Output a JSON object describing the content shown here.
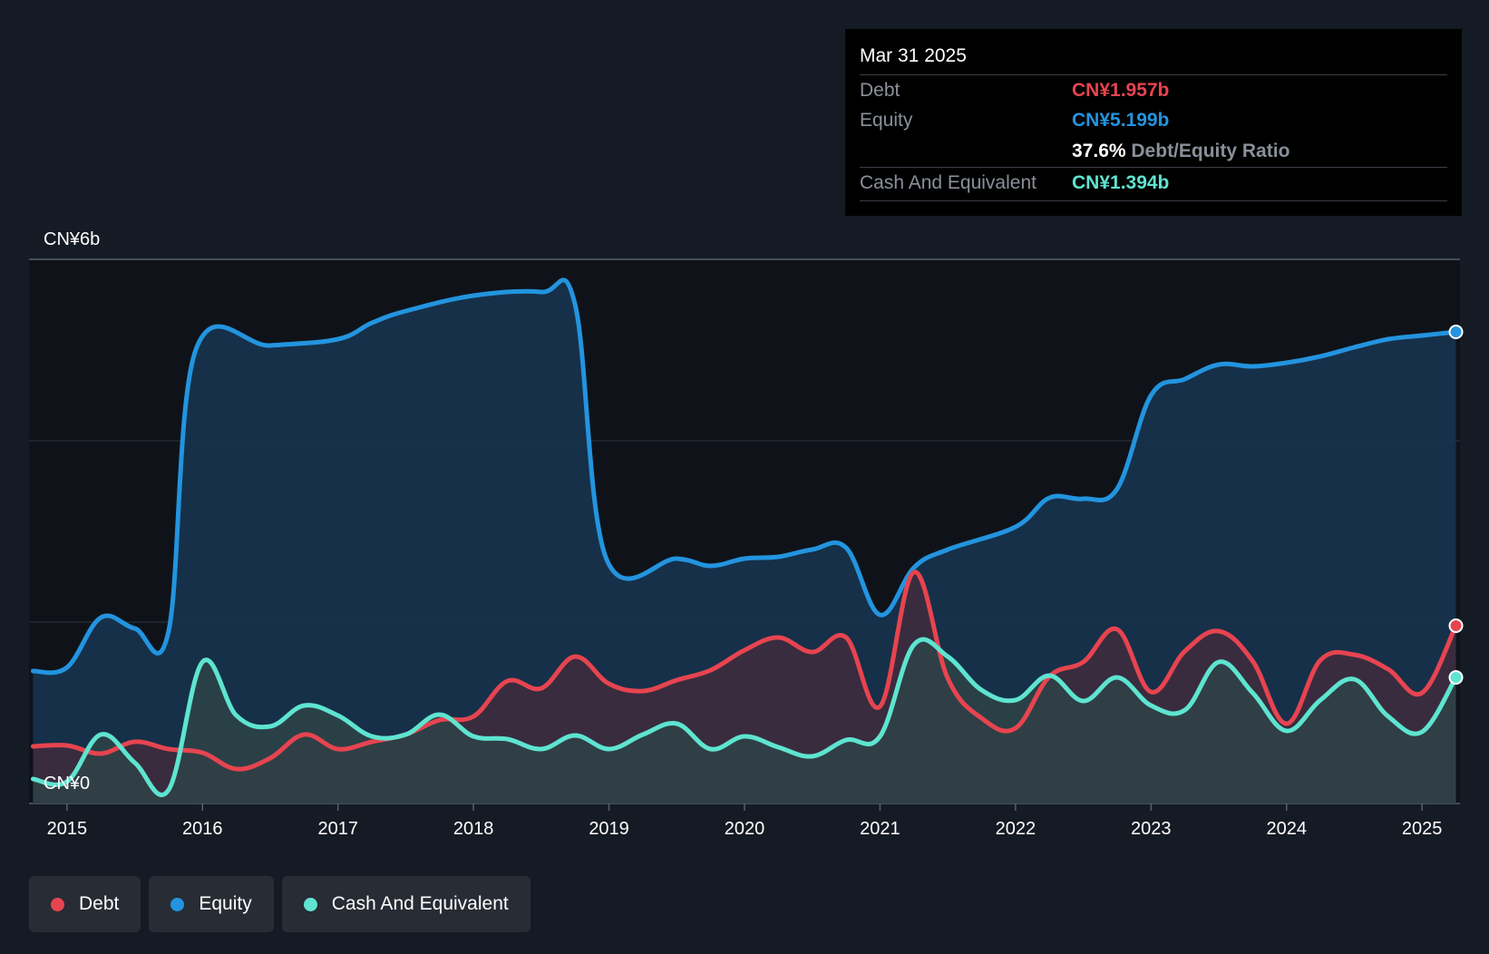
{
  "chart_data": {
    "type": "area",
    "title": "",
    "x_axis": {
      "label": "",
      "range": [
        2014.72,
        2025.28
      ],
      "ticks": [
        2015,
        2016,
        2017,
        2018,
        2019,
        2020,
        2021,
        2022,
        2023,
        2024,
        2025
      ],
      "tick_labels": [
        "2015",
        "2016",
        "2017",
        "2018",
        "2019",
        "2020",
        "2021",
        "2022",
        "2023",
        "2024",
        "2025"
      ]
    },
    "y_axis": {
      "label": "",
      "range": [
        0,
        6
      ],
      "gridlines": [
        0,
        2,
        4,
        6
      ],
      "tick_labels": {
        "top": "CN¥6b",
        "bottom": "CN¥0"
      }
    },
    "series": [
      {
        "name": "Equity",
        "color": "#2394df",
        "fill": "#173652",
        "points": [
          [
            2014.75,
            1.46
          ],
          [
            2015.0,
            1.5
          ],
          [
            2015.25,
            2.05
          ],
          [
            2015.5,
            1.93
          ],
          [
            2015.75,
            1.9
          ],
          [
            2015.95,
            5.0
          ],
          [
            2016.5,
            5.05
          ],
          [
            2017.0,
            5.12
          ],
          [
            2017.25,
            5.3
          ],
          [
            2017.5,
            5.43
          ],
          [
            2018.0,
            5.6
          ],
          [
            2018.5,
            5.64
          ],
          [
            2018.75,
            5.5
          ],
          [
            2018.98,
            2.7
          ],
          [
            2019.5,
            2.7
          ],
          [
            2019.75,
            2.62
          ],
          [
            2020.0,
            2.7
          ],
          [
            2020.25,
            2.72
          ],
          [
            2020.5,
            2.8
          ],
          [
            2020.75,
            2.82
          ],
          [
            2021.0,
            2.08
          ],
          [
            2021.25,
            2.6
          ],
          [
            2021.5,
            2.8
          ],
          [
            2022.0,
            3.05
          ],
          [
            2022.25,
            3.37
          ],
          [
            2022.5,
            3.36
          ],
          [
            2022.75,
            3.47
          ],
          [
            2023.0,
            4.5
          ],
          [
            2023.25,
            4.68
          ],
          [
            2023.5,
            4.84
          ],
          [
            2023.75,
            4.82
          ],
          [
            2024.0,
            4.86
          ],
          [
            2024.25,
            4.93
          ],
          [
            2024.5,
            5.03
          ],
          [
            2024.75,
            5.12
          ],
          [
            2025.0,
            5.16
          ],
          [
            2025.25,
            5.2
          ]
        ]
      },
      {
        "name": "Debt",
        "color": "#e64450",
        "fill": "#3f2b3c",
        "points": [
          [
            2014.75,
            0.63
          ],
          [
            2015.0,
            0.64
          ],
          [
            2015.25,
            0.55
          ],
          [
            2015.5,
            0.68
          ],
          [
            2015.75,
            0.6
          ],
          [
            2016.0,
            0.56
          ],
          [
            2016.25,
            0.38
          ],
          [
            2016.5,
            0.5
          ],
          [
            2016.75,
            0.76
          ],
          [
            2017.0,
            0.6
          ],
          [
            2017.25,
            0.68
          ],
          [
            2017.5,
            0.76
          ],
          [
            2017.75,
            0.92
          ],
          [
            2018.0,
            0.96
          ],
          [
            2018.25,
            1.35
          ],
          [
            2018.5,
            1.27
          ],
          [
            2018.75,
            1.62
          ],
          [
            2019.0,
            1.32
          ],
          [
            2019.25,
            1.24
          ],
          [
            2019.5,
            1.36
          ],
          [
            2019.75,
            1.47
          ],
          [
            2020.0,
            1.69
          ],
          [
            2020.25,
            1.83
          ],
          [
            2020.5,
            1.67
          ],
          [
            2020.75,
            1.83
          ],
          [
            2021.0,
            1.07
          ],
          [
            2021.25,
            2.55
          ],
          [
            2021.5,
            1.38
          ],
          [
            2021.75,
            0.94
          ],
          [
            2022.0,
            0.83
          ],
          [
            2022.25,
            1.4
          ],
          [
            2022.5,
            1.56
          ],
          [
            2022.75,
            1.92
          ],
          [
            2023.0,
            1.23
          ],
          [
            2023.25,
            1.68
          ],
          [
            2023.5,
            1.9
          ],
          [
            2023.75,
            1.57
          ],
          [
            2024.0,
            0.88
          ],
          [
            2024.25,
            1.58
          ],
          [
            2024.5,
            1.64
          ],
          [
            2024.75,
            1.48
          ],
          [
            2025.0,
            1.22
          ],
          [
            2025.25,
            1.96
          ]
        ]
      },
      {
        "name": "Cash And Equivalent",
        "color": "#5ee4d0",
        "fill": "#2e4347",
        "points": [
          [
            2014.75,
            0.27
          ],
          [
            2015.0,
            0.24
          ],
          [
            2015.25,
            0.76
          ],
          [
            2015.5,
            0.45
          ],
          [
            2015.75,
            0.15
          ],
          [
            2016.0,
            1.56
          ],
          [
            2016.25,
            0.97
          ],
          [
            2016.5,
            0.85
          ],
          [
            2016.75,
            1.08
          ],
          [
            2017.0,
            0.97
          ],
          [
            2017.25,
            0.74
          ],
          [
            2017.5,
            0.76
          ],
          [
            2017.75,
            0.98
          ],
          [
            2018.0,
            0.74
          ],
          [
            2018.25,
            0.71
          ],
          [
            2018.5,
            0.6
          ],
          [
            2018.75,
            0.75
          ],
          [
            2019.0,
            0.6
          ],
          [
            2019.25,
            0.76
          ],
          [
            2019.5,
            0.88
          ],
          [
            2019.75,
            0.6
          ],
          [
            2020.0,
            0.74
          ],
          [
            2020.25,
            0.62
          ],
          [
            2020.5,
            0.52
          ],
          [
            2020.75,
            0.7
          ],
          [
            2021.0,
            0.74
          ],
          [
            2021.25,
            1.75
          ],
          [
            2021.5,
            1.62
          ],
          [
            2021.75,
            1.25
          ],
          [
            2022.0,
            1.14
          ],
          [
            2022.25,
            1.41
          ],
          [
            2022.5,
            1.13
          ],
          [
            2022.75,
            1.39
          ],
          [
            2023.0,
            1.08
          ],
          [
            2023.25,
            1.03
          ],
          [
            2023.5,
            1.56
          ],
          [
            2023.75,
            1.22
          ],
          [
            2024.0,
            0.8
          ],
          [
            2024.25,
            1.14
          ],
          [
            2024.5,
            1.37
          ],
          [
            2024.75,
            0.96
          ],
          [
            2025.0,
            0.79
          ],
          [
            2025.25,
            1.39
          ]
        ]
      }
    ],
    "highlight": {
      "date": "2025.25"
    }
  },
  "tooltip": {
    "date": "Mar 31 2025",
    "debt_label": "Debt",
    "debt_value": "CN¥1.957b",
    "equity_label": "Equity",
    "equity_value": "CN¥5.199b",
    "ratio_value": "37.6%",
    "ratio_label": "Debt/Equity Ratio",
    "cash_label": "Cash And Equivalent",
    "cash_value": "CN¥1.394b"
  },
  "legend": [
    {
      "label": "Debt",
      "color": "#e64450"
    },
    {
      "label": "Equity",
      "color": "#2394df"
    },
    {
      "label": "Cash And Equivalent",
      "color": "#5ee4d0"
    }
  ]
}
